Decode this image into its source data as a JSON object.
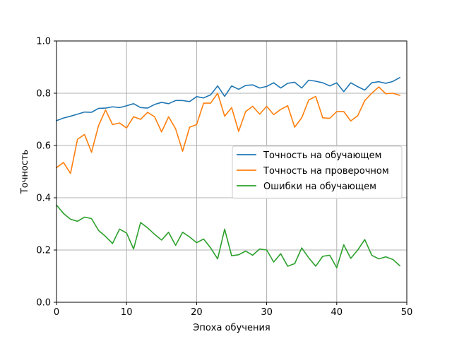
{
  "chart_data": {
    "type": "line",
    "title": "",
    "xlabel": "Эпоха обучения",
    "ylabel": "Точность",
    "xlim": [
      0,
      50
    ],
    "ylim": [
      0.0,
      1.0
    ],
    "xticks": [
      0,
      10,
      20,
      30,
      40,
      50
    ],
    "yticks": [
      0.0,
      0.2,
      0.4,
      0.6,
      0.8,
      1.0
    ],
    "xtick_labels": [
      "0",
      "10",
      "20",
      "30",
      "40",
      "50"
    ],
    "ytick_labels": [
      "0.0",
      "0.2",
      "0.4",
      "0.6",
      "0.8",
      "1.0"
    ],
    "grid": true,
    "legend_position": "center-right",
    "x": [
      0,
      1,
      2,
      3,
      4,
      5,
      6,
      7,
      8,
      9,
      10,
      11,
      12,
      13,
      14,
      15,
      16,
      17,
      18,
      19,
      20,
      21,
      22,
      23,
      24,
      25,
      26,
      27,
      28,
      29,
      30,
      31,
      32,
      33,
      34,
      35,
      36,
      37,
      38,
      39,
      40,
      41,
      42,
      43,
      44,
      45,
      46,
      47,
      48,
      49
    ],
    "series": [
      {
        "name": "Точность на обучающем",
        "color": "#1f77b4",
        "values": [
          0.695,
          0.705,
          0.712,
          0.72,
          0.728,
          0.727,
          0.742,
          0.743,
          0.748,
          0.745,
          0.752,
          0.76,
          0.745,
          0.743,
          0.757,
          0.765,
          0.76,
          0.772,
          0.772,
          0.768,
          0.787,
          0.782,
          0.794,
          0.828,
          0.788,
          0.828,
          0.815,
          0.83,
          0.832,
          0.82,
          0.826,
          0.84,
          0.82,
          0.838,
          0.842,
          0.82,
          0.85,
          0.846,
          0.84,
          0.828,
          0.84,
          0.806,
          0.84,
          0.825,
          0.812,
          0.84,
          0.844,
          0.838,
          0.845,
          0.86
        ]
      },
      {
        "name": "Точность на проверочном",
        "color": "#ff7f0e",
        "values": [
          0.515,
          0.535,
          0.493,
          0.624,
          0.642,
          0.574,
          0.676,
          0.736,
          0.68,
          0.686,
          0.667,
          0.71,
          0.7,
          0.727,
          0.71,
          0.652,
          0.71,
          0.664,
          0.578,
          0.67,
          0.68,
          0.762,
          0.762,
          0.8,
          0.712,
          0.745,
          0.654,
          0.73,
          0.75,
          0.72,
          0.75,
          0.718,
          0.738,
          0.752,
          0.67,
          0.706,
          0.774,
          0.788,
          0.706,
          0.704,
          0.73,
          0.73,
          0.694,
          0.714,
          0.772,
          0.8,
          0.824,
          0.798,
          0.8,
          0.792
        ]
      },
      {
        "name": "Ошибки на обучающем",
        "color": "#2ca02c",
        "values": [
          0.372,
          0.34,
          0.318,
          0.31,
          0.326,
          0.32,
          0.275,
          0.252,
          0.225,
          0.28,
          0.265,
          0.204,
          0.305,
          0.285,
          0.26,
          0.238,
          0.268,
          0.218,
          0.268,
          0.25,
          0.228,
          0.242,
          0.208,
          0.166,
          0.28,
          0.178,
          0.182,
          0.196,
          0.18,
          0.204,
          0.2,
          0.154,
          0.186,
          0.138,
          0.148,
          0.208,
          0.17,
          0.138,
          0.176,
          0.18,
          0.132,
          0.22,
          0.168,
          0.2,
          0.24,
          0.18,
          0.166,
          0.174,
          0.164,
          0.14
        ]
      }
    ]
  }
}
